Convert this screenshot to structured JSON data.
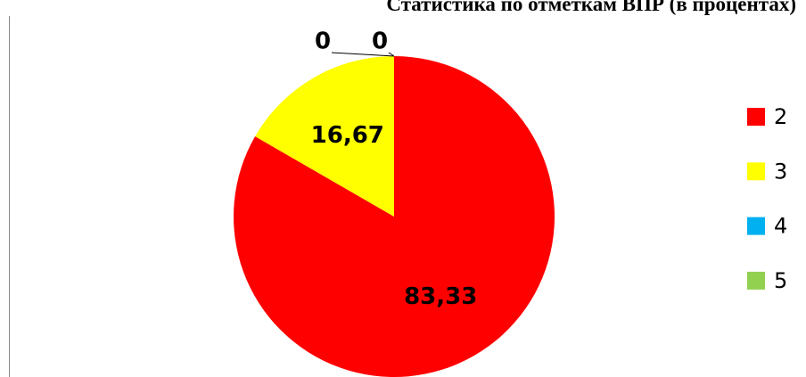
{
  "chart_data": {
    "type": "pie",
    "title": "Статистика по отметкам ВПР (в процентах)",
    "categories": [
      "2",
      "3",
      "4",
      "5"
    ],
    "values": [
      83.33,
      16.67,
      0,
      0
    ],
    "value_labels": [
      "83,33",
      "16,67",
      "0",
      "0"
    ],
    "colors": [
      "#ff0000",
      "#ffff00",
      "#00b0f0",
      "#92d050"
    ],
    "legend": "right"
  }
}
